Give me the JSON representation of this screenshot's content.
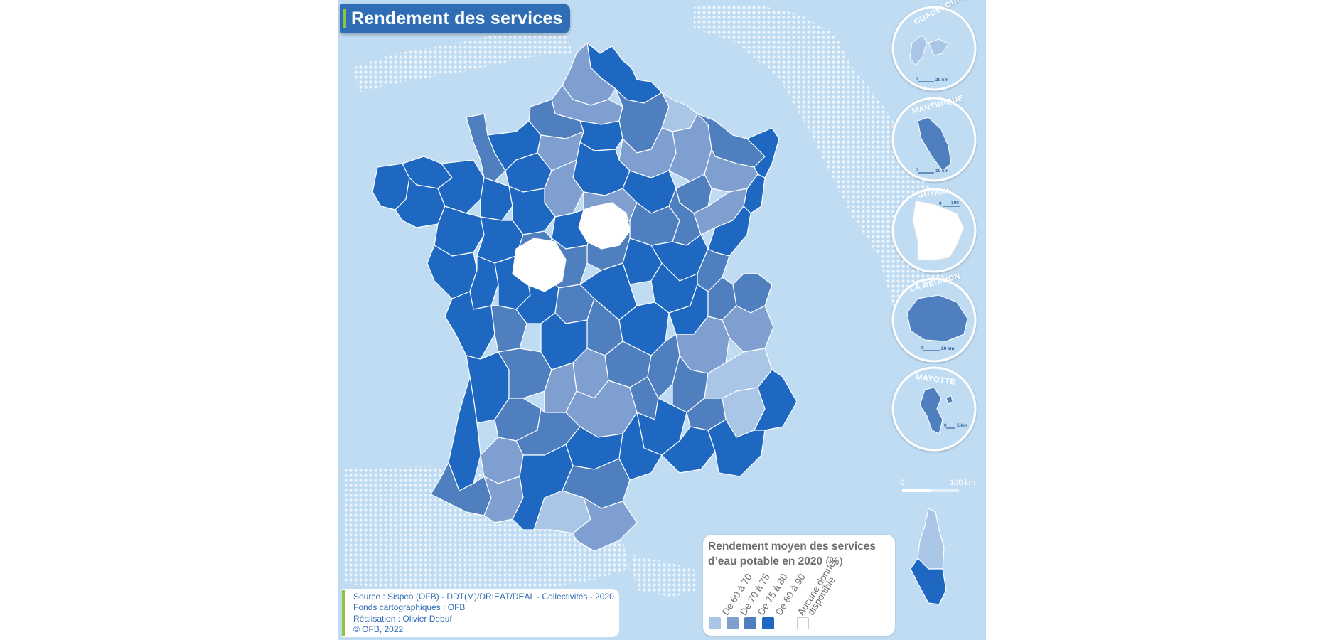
{
  "title": "Rendement des services",
  "legend": {
    "title_line1": "Rendement moyen des services",
    "title_line2": "d’eau potable en 2020",
    "unit": "(%)",
    "classes": [
      {
        "label": "De 60 à 70",
        "color": "#a9c6e6"
      },
      {
        "label": "De 70 à 75",
        "color": "#7f9fd0"
      },
      {
        "label": "De 75 à 80",
        "color": "#4f7fbf"
      },
      {
        "label": "De 80 à 90",
        "color": "#1f68c1"
      }
    ],
    "no_data_line1": "Aucune donnée",
    "no_data_line2": "disponible",
    "no_data_color": "#ffffff"
  },
  "scale_bar": {
    "start": "0",
    "end": "100 km"
  },
  "insets": [
    {
      "name": "GUADELOUPE",
      "scale": "20 km",
      "zero": "0"
    },
    {
      "name": "MARTINIQUE",
      "scale": "10 km",
      "zero": "0"
    },
    {
      "name": "GUYANE",
      "scale": "100",
      "zero": "0"
    },
    {
      "name": "LA RÉUNION",
      "scale": "20 km",
      "zero": "0"
    },
    {
      "name": "MAYOTTE",
      "scale": "5 km",
      "zero": "0"
    }
  ],
  "source": {
    "line1": "Source : Sispea (OFB) - DDT(M)/DRIEAT/DEAL - Collectivités - 2020",
    "line2": "Fonds cartographiques : OFB",
    "line3": "Réalisation : Olivier Debuf",
    "line4": "© OFB, 2022"
  },
  "colors": {
    "sea": "#bfdcf3",
    "title_bg": "#2f6db5",
    "accent_green": "#8cc63f"
  }
}
